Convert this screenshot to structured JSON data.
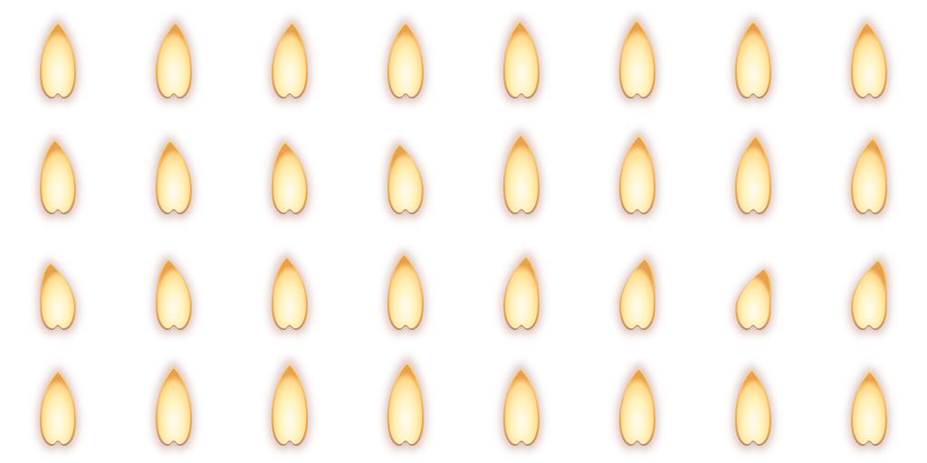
{
  "sprite_sheet": {
    "columns": 8,
    "rows": 4,
    "background": "#ffffff",
    "colors": {
      "core": "#fffdf0",
      "mid": "#fff0b8",
      "outer": "#ffd98a",
      "rim": "#e8a04a",
      "glow": "#b98a80"
    },
    "frames": [
      {
        "lean": 0.0,
        "scale": 1.0
      },
      {
        "lean": 0.02,
        "scale": 1.0
      },
      {
        "lean": 0.03,
        "scale": 1.0
      },
      {
        "lean": 0.0,
        "scale": 1.0
      },
      {
        "lean": -0.02,
        "scale": 1.02
      },
      {
        "lean": -0.01,
        "scale": 1.03
      },
      {
        "lean": 0.0,
        "scale": 1.02
      },
      {
        "lean": -0.03,
        "scale": 1.0
      },
      {
        "lean": -0.04,
        "scale": 0.98
      },
      {
        "lean": -0.05,
        "scale": 0.97
      },
      {
        "lean": -0.06,
        "scale": 0.95
      },
      {
        "lean": -0.08,
        "scale": 0.92
      },
      {
        "lean": -0.01,
        "scale": 1.05
      },
      {
        "lean": 0.02,
        "scale": 1.04
      },
      {
        "lean": 0.03,
        "scale": 1.03
      },
      {
        "lean": 0.05,
        "scale": 1.0
      },
      {
        "lean": -0.1,
        "scale": 0.88
      },
      {
        "lean": -0.07,
        "scale": 0.93
      },
      {
        "lean": -0.04,
        "scale": 0.96
      },
      {
        "lean": -0.02,
        "scale": 1.0
      },
      {
        "lean": 0.06,
        "scale": 0.97
      },
      {
        "lean": 0.1,
        "scale": 0.94
      },
      {
        "lean": 0.14,
        "scale": 0.8
      },
      {
        "lean": 0.12,
        "scale": 0.92
      },
      {
        "lean": 0.0,
        "scale": 0.98
      },
      {
        "lean": 0.0,
        "scale": 1.04
      },
      {
        "lean": 0.0,
        "scale": 1.08
      },
      {
        "lean": 0.02,
        "scale": 1.1
      },
      {
        "lean": -0.01,
        "scale": 1.02
      },
      {
        "lean": 0.02,
        "scale": 1.02
      },
      {
        "lean": -0.02,
        "scale": 1.0
      },
      {
        "lean": 0.01,
        "scale": 0.98
      }
    ]
  }
}
